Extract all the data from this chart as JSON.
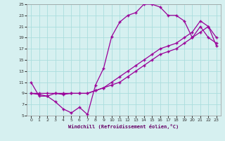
{
  "xlabel": "Windchill (Refroidissement éolien,°C)",
  "background_color": "#d6f0f0",
  "grid_color": "#aadddd",
  "line_color": "#990099",
  "xlim": [
    -0.5,
    23.5
  ],
  "ylim": [
    5,
    25
  ],
  "xticks": [
    0,
    1,
    2,
    3,
    4,
    5,
    6,
    7,
    8,
    9,
    10,
    11,
    12,
    13,
    14,
    15,
    16,
    17,
    18,
    19,
    20,
    21,
    22,
    23
  ],
  "yticks": [
    5,
    7,
    9,
    11,
    13,
    15,
    17,
    19,
    21,
    23,
    25
  ],
  "line1_x": [
    0,
    1,
    2,
    3,
    4,
    5,
    6,
    7,
    8,
    9,
    10,
    11,
    12,
    13,
    14,
    15,
    16,
    17,
    18,
    19,
    20,
    21,
    22,
    23
  ],
  "line1_y": [
    11,
    8.5,
    8.5,
    7.5,
    6.2,
    5.5,
    6.5,
    5.2,
    10.5,
    13.5,
    19.2,
    21.8,
    23,
    23.5,
    25,
    25,
    24.5,
    23,
    23,
    22,
    19,
    21,
    19,
    18
  ],
  "line2_x": [
    0,
    1,
    2,
    3,
    4,
    5,
    6,
    7,
    8,
    9,
    10,
    11,
    12,
    13,
    14,
    15,
    16,
    17,
    18,
    19,
    20,
    21,
    22,
    23
  ],
  "line2_y": [
    9,
    8.8,
    8.5,
    9,
    8.8,
    9,
    9,
    9,
    9.5,
    10,
    11,
    12,
    13,
    14,
    15,
    16,
    17,
    17.5,
    18,
    19,
    20,
    22,
    21,
    19
  ],
  "line3_x": [
    0,
    1,
    2,
    3,
    4,
    5,
    6,
    7,
    8,
    9,
    10,
    11,
    12,
    13,
    14,
    15,
    16,
    17,
    18,
    19,
    20,
    21,
    22,
    23
  ],
  "line3_y": [
    9,
    9,
    9,
    9,
    9,
    9,
    9,
    9,
    9.5,
    10,
    10.5,
    11,
    12,
    13,
    14,
    15,
    16,
    16.5,
    17,
    18,
    19,
    20,
    21,
    17.5
  ],
  "marker": "+",
  "markersize": 3,
  "linewidth": 0.9
}
